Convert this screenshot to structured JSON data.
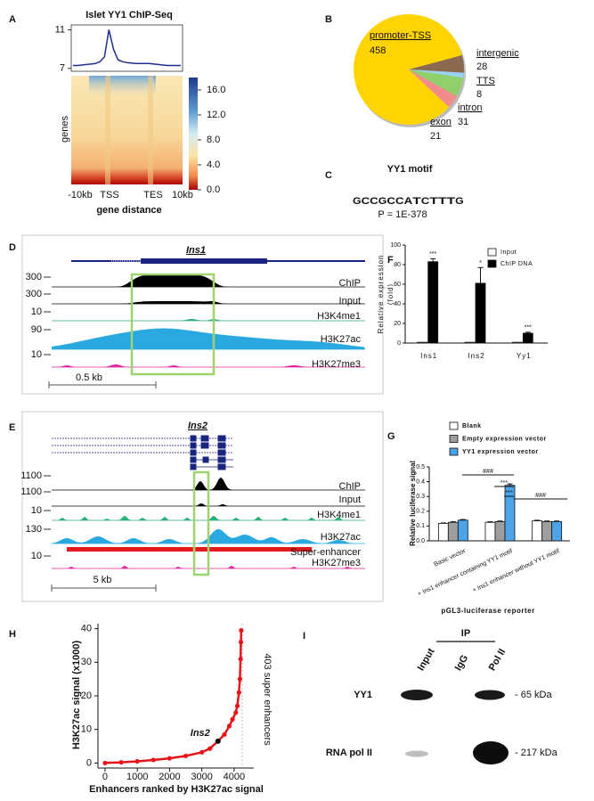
{
  "panel_labels": [
    "A",
    "B",
    "C",
    "D",
    "E",
    "F",
    "G",
    "H",
    "I"
  ],
  "chart_data": [
    {
      "type": "heatmap",
      "title": "Islet YY1 ChIP-Seq",
      "ylabel": "genes",
      "xlabel": "gene distance",
      "x_labels": [
        "-10kb",
        "TSS",
        "TES",
        "10kb"
      ],
      "profile": {
        "ylim": [
          6.7,
          11.5
        ],
        "yticks": [
          7,
          11
        ],
        "values": [
          7.3,
          7.3,
          7.35,
          7.4,
          7.45,
          7.5,
          7.7,
          8.2,
          11,
          9,
          7.9,
          7.7,
          7.6,
          7.55,
          7.5,
          7.5,
          7.5,
          7.5,
          7.45,
          7.4,
          7.35,
          7.3,
          7.3,
          7.3,
          7.3
        ],
        "color": "#1f2f8f"
      },
      "colorbar": {
        "lim": [
          0,
          18
        ],
        "ticks": [
          {
            "value": 0,
            "label": "0.0"
          },
          {
            "value": 4,
            "label": "4.0"
          },
          {
            "value": 8,
            "label": "8.0"
          },
          {
            "value": 12,
            "label": "12.0"
          },
          {
            "value": 16,
            "label": "16.0"
          }
        ]
      }
    },
    {
      "type": "pie",
      "categories": [
        "promoter-TSS",
        "intergenic",
        "TTS",
        "intron",
        "exon"
      ],
      "values": [
        458,
        28,
        8,
        31,
        21
      ],
      "colors": [
        "#ffd400",
        "#8b6a4f",
        "#9ad3f2",
        "#8fd06a",
        "#f28b8b"
      ]
    },
    {
      "type": "bar",
      "ylabel": [
        "Relative expression",
        "(fold)"
      ],
      "categories": [
        "Ins1",
        "Ins2",
        "Yy1"
      ],
      "ylim": [
        0,
        100
      ],
      "yticks": [
        0,
        20,
        40,
        60,
        80,
        100
      ],
      "series": [
        {
          "name": "Input",
          "color": "#ffffff",
          "values": [
            0.8,
            0.8,
            0.8
          ]
        },
        {
          "name": "ChIP DNA",
          "color": "#000000",
          "values": [
            83,
            61,
            10
          ],
          "errors": [
            3,
            16,
            1
          ]
        }
      ],
      "significance": [
        "***",
        "*",
        "***"
      ]
    },
    {
      "type": "bar",
      "ylabel": "Relative luciferase signal",
      "xlabel": "pGL3-luciferase reporter",
      "categories": [
        "Basic vector",
        "+ Ins1 enhancer containing YY1 motif",
        "+ Ins1 enhancer without YY1 motif"
      ],
      "ylim": [
        0,
        0.5
      ],
      "yticks": [
        {
          "value": 0,
          "label": "0.0"
        },
        0.1,
        0.2,
        0.3,
        0.4,
        0.5
      ],
      "series": [
        {
          "name": "Blank",
          "color": "#ffffff",
          "values": [
            0.118,
            0.125,
            0.135
          ],
          "errors": [
            0.003,
            0.004,
            0.004
          ]
        },
        {
          "name": "Empty expression vector",
          "color": "#9e9e9e",
          "values": [
            0.125,
            0.13,
            0.13
          ],
          "errors": [
            0.004,
            0.004,
            0.004
          ]
        },
        {
          "name": "YY1 expression vector",
          "color": "#4da3e8",
          "values": [
            0.14,
            0.375,
            0.13
          ],
          "errors": [
            0.004,
            0.01,
            0.004
          ]
        }
      ],
      "significance": [
        "###",
        "***",
        "***",
        "###"
      ]
    },
    {
      "type": "line",
      "ylabel": "H3K27ac signal (x1000)",
      "xlabel": "Enhancers ranked by H3K27ac signal",
      "xlim": [
        -220,
        4610
      ],
      "ylim": [
        -1.5,
        41.5
      ],
      "xticks": [
        0,
        1000,
        2000,
        3000,
        4000
      ],
      "yticks": [
        0,
        10,
        20,
        30,
        40
      ],
      "color": "#e8141c",
      "x": [
        0,
        500,
        1000,
        1500,
        2000,
        2500,
        3000,
        3250,
        3500,
        3700,
        3850,
        3950,
        4050,
        4100,
        4150,
        4180,
        4200,
        4210,
        4220
      ],
      "values": [
        0,
        0.2,
        0.5,
        0.9,
        1.4,
        2.1,
        3.2,
        4.3,
        6.5,
        8.5,
        11,
        13,
        15,
        17,
        21,
        25,
        31,
        36,
        39.5
      ],
      "annotation": {
        "text": "Ins2",
        "x": 3500,
        "y": 6.5
      },
      "side_label": "403 super enhancers"
    }
  ],
  "motif": {
    "title": "YY1 motif",
    "logo": [
      "G",
      "C",
      "C",
      "G",
      "C",
      "C",
      "A",
      "T",
      "C",
      "T",
      "T",
      "T",
      "G"
    ],
    "pvalue": "P = 1E-378"
  },
  "tracks": [
    {
      "gene": "Ins1",
      "scale_bar": "0.5 kb",
      "tracks": [
        {
          "name": "ChIP",
          "max": 300,
          "color": "#000000"
        },
        {
          "name": "Input",
          "max": 300,
          "color": "#000000"
        },
        {
          "name": "H3K4me1",
          "max": 10,
          "color": "#2ab07a"
        },
        {
          "name": "H3K27ac",
          "max": 90,
          "color": "#29a9e0"
        },
        {
          "name": "H3K27me3",
          "max": 10,
          "color": "#e0259e"
        }
      ]
    },
    {
      "gene": "Ins2",
      "scale_bar": "5 kb",
      "tracks": [
        {
          "name": "ChIP",
          "max": 1100,
          "color": "#000000"
        },
        {
          "name": "Input",
          "max": 1100,
          "color": "#000000"
        },
        {
          "name": "H3K4me1",
          "max": 10,
          "color": "#2ab07a"
        },
        {
          "name": "H3K27ac",
          "max": 130,
          "color": "#29a9e0"
        },
        {
          "name": "Super-enhancer",
          "color": "#e31a1c"
        },
        {
          "name": "H3K27me3",
          "max": 10,
          "color": "#e0259e"
        }
      ]
    }
  ],
  "blot": {
    "group": "IP",
    "lanes": [
      "Input",
      "IgG",
      "Pol II"
    ],
    "rows": [
      "YY1",
      "RNA pol II"
    ],
    "markers": [
      "- 65 kDa",
      "- 217 kDa"
    ]
  }
}
